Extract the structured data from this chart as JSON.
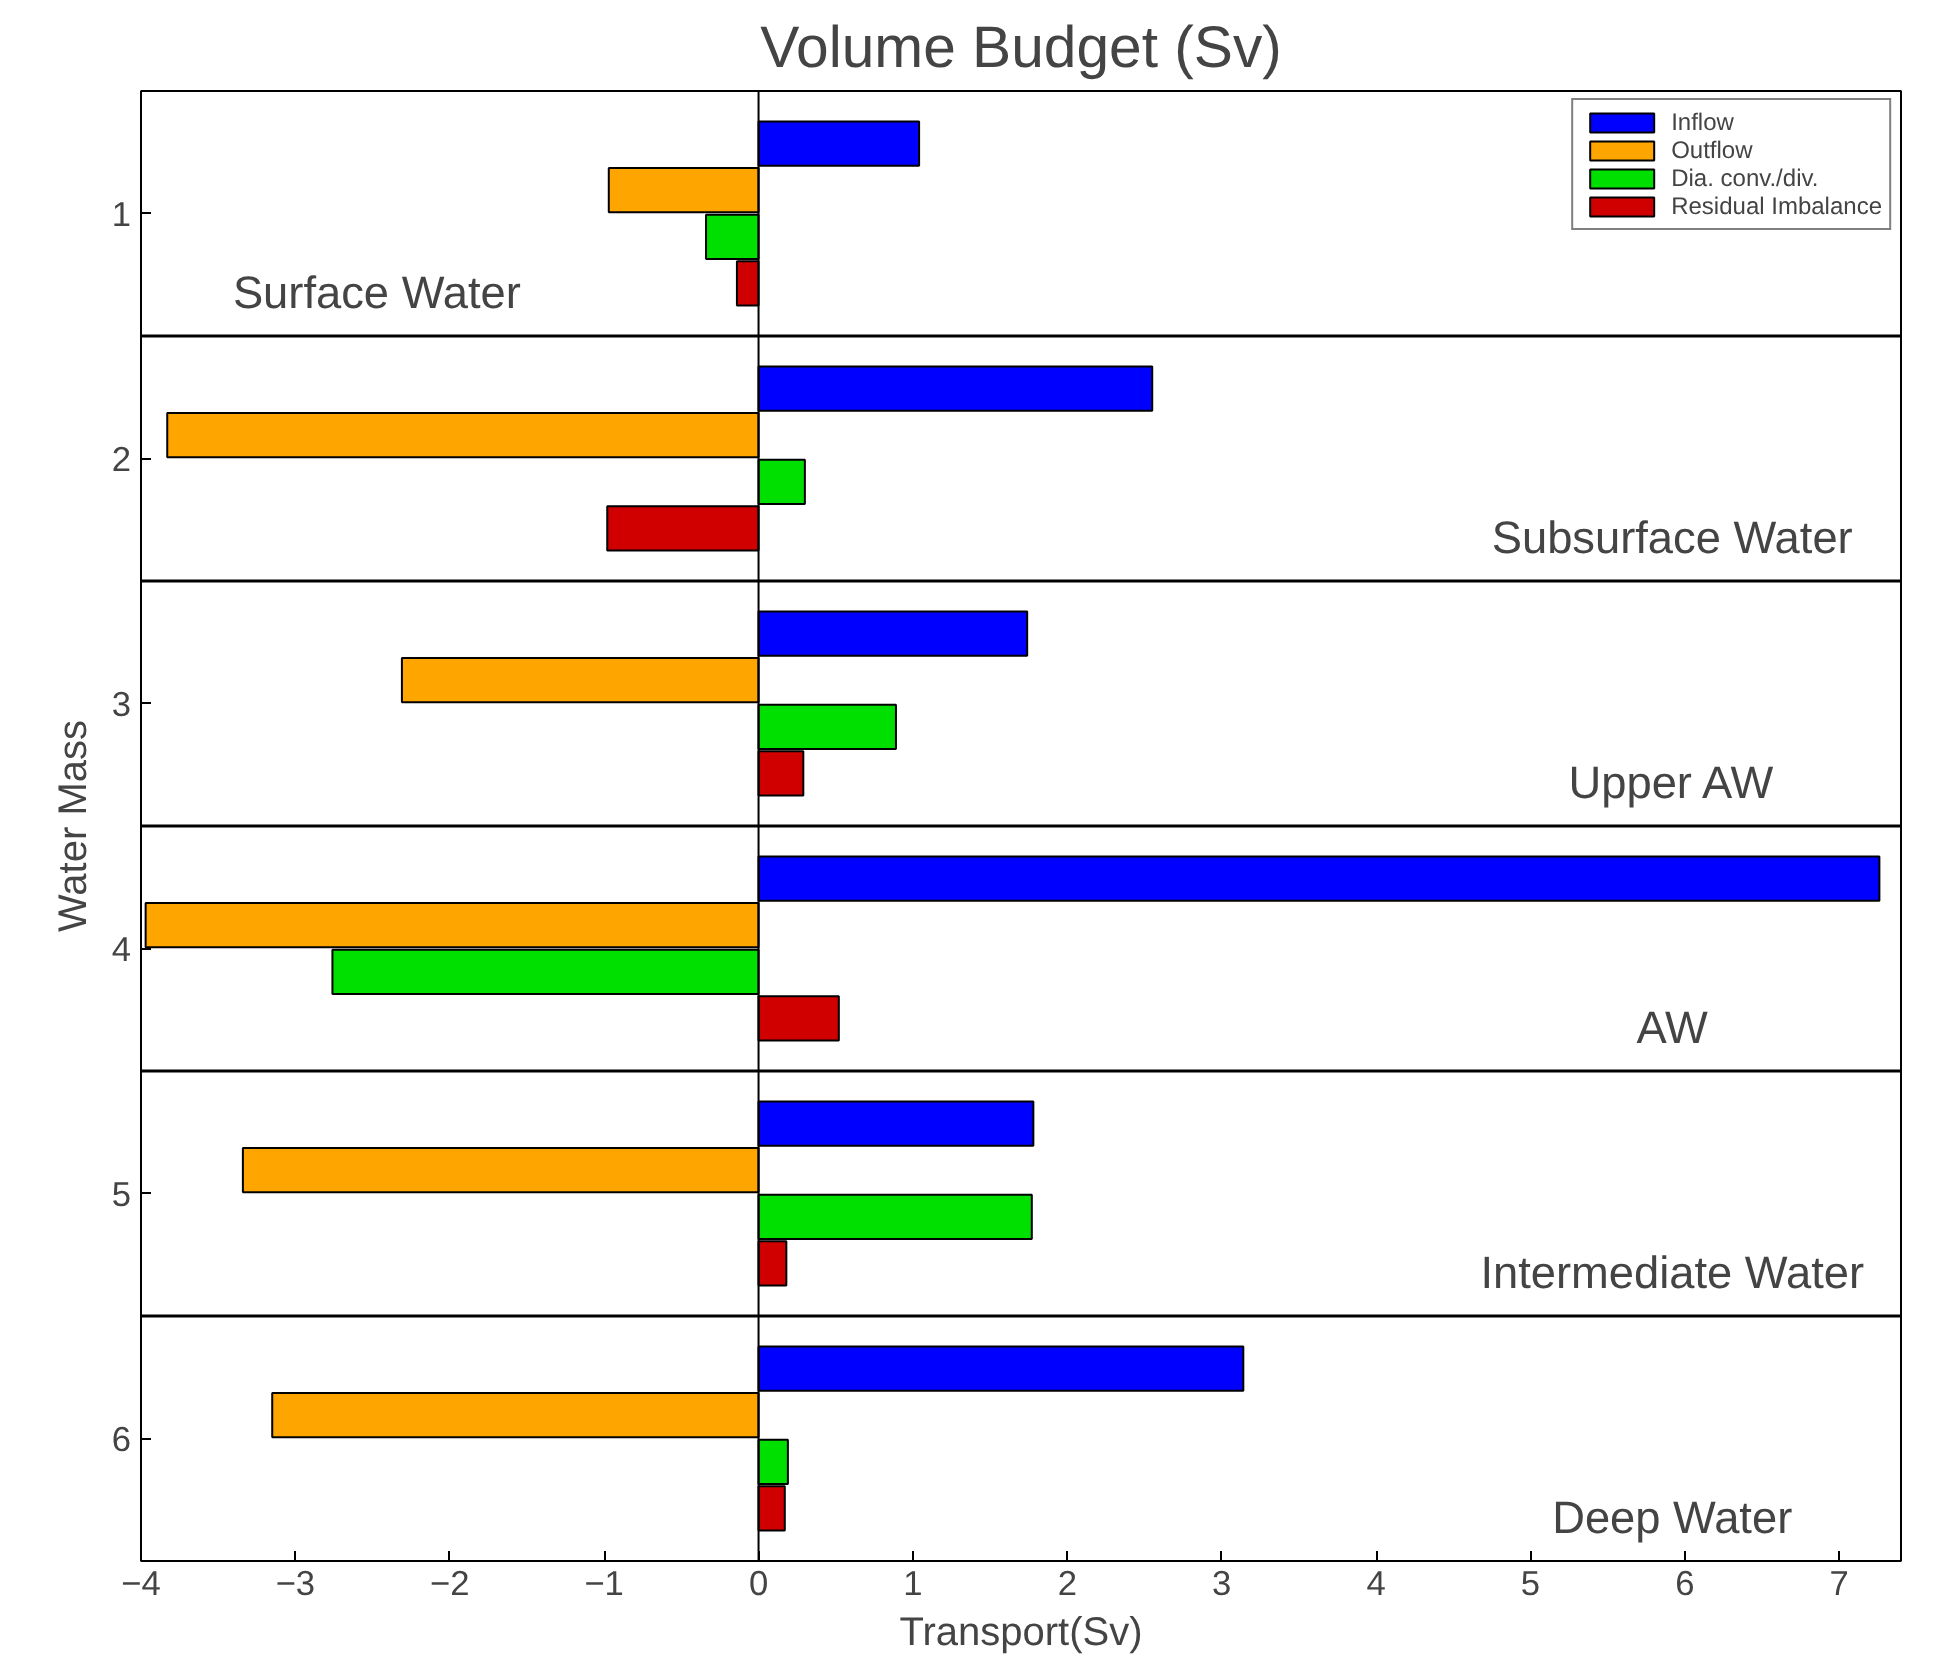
{
  "chart_data": {
    "type": "bar",
    "orientation": "horizontal",
    "title": "Volume Budget (Sv)",
    "xlabel": "Transport(Sv)",
    "ylabel": "Water Mass",
    "categories": [
      "1",
      "2",
      "3",
      "4",
      "5",
      "6"
    ],
    "series": [
      {
        "name": "Inflow",
        "color": "#0000ff",
        "values": [
          1.04,
          2.55,
          1.74,
          7.26,
          1.78,
          3.14
        ]
      },
      {
        "name": "Outflow",
        "color": "#ffa500",
        "values": [
          -0.97,
          -3.83,
          -2.31,
          -3.97,
          -3.34,
          -3.15
        ]
      },
      {
        "name": "Dia. conv./div.",
        "color": "#00e000",
        "values": [
          -0.34,
          0.3,
          0.89,
          -2.76,
          1.77,
          0.19
        ]
      },
      {
        "name": "Residual Imbalance",
        "color": "#d00000",
        "values": [
          -0.14,
          -0.98,
          0.29,
          0.52,
          0.18,
          0.17
        ]
      }
    ],
    "xlim": [
      -4,
      7.4
    ],
    "xticks": [
      {
        "value": -4,
        "label": "−4"
      },
      {
        "value": -3,
        "label": "−3"
      },
      {
        "value": -2,
        "label": "−2"
      },
      {
        "value": -1,
        "label": "−1"
      },
      0,
      1,
      2,
      3,
      4,
      5,
      6,
      7
    ],
    "ref_lines": [
      {
        "axis": "x",
        "value": 0,
        "color": "#000000"
      }
    ],
    "annotations": [
      "Surface Water",
      "Subsurface Water",
      "Upper AW",
      "AW",
      "Intermediate Water",
      "Deep Water"
    ],
    "legend": "top right",
    "grid": false
  }
}
